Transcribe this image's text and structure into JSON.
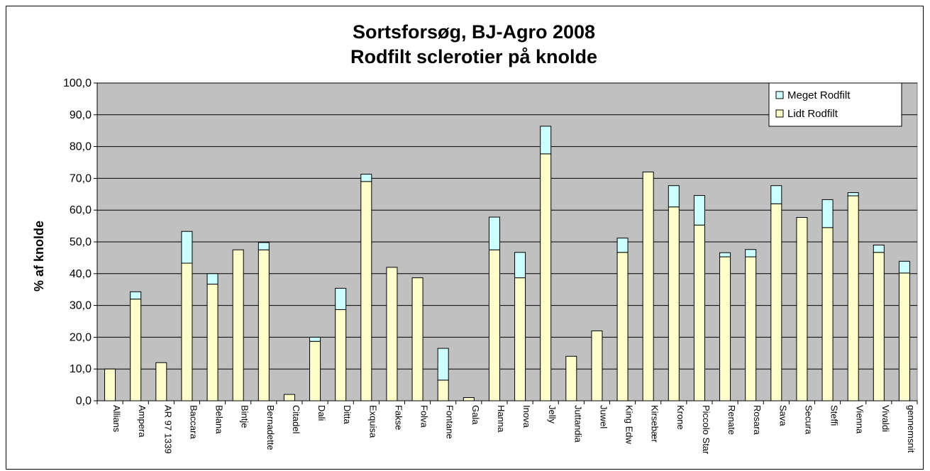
{
  "chart_data": {
    "type": "bar",
    "stacked": true,
    "title": "Sortsforsøg, BJ-Agro 2008",
    "subtitle": "Rodfilt sclerotier på knolde",
    "ylabel": "% af knolde",
    "xlabel": "",
    "ylim": [
      0,
      100
    ],
    "ytick_step": 10,
    "ytick_labels": [
      "0,0",
      "10,0",
      "20,0",
      "30,0",
      "40,0",
      "50,0",
      "60,0",
      "70,0",
      "80,0",
      "90,0",
      "100,0"
    ],
    "grid": true,
    "legend_position": "top-right",
    "categories": [
      "Allians",
      "Ampera",
      "AR 97 1339",
      "Baccara",
      "Belana",
      "Bintje",
      "Bernadette",
      "Citadel",
      "Dali",
      "Ditta",
      "Exquisa",
      "Fakse",
      "Folva",
      "Fontane",
      "Gala",
      "Hanna",
      "Inova",
      "Jelly",
      "Juttandia",
      "Juwel",
      "King Edw",
      "Kirsebær",
      "Krone",
      "Piccolo Star",
      "Renate",
      "Rosara",
      "Sava",
      "Secura",
      "Steffi",
      "Vienna",
      "Vivaldi",
      "gennemsnit"
    ],
    "series": [
      {
        "name": "Lidt Rodfilt",
        "color": "#ffffcc",
        "values": [
          10.0,
          32.0,
          12.0,
          43.3,
          36.7,
          47.5,
          47.5,
          2.0,
          18.7,
          28.7,
          69.0,
          42.0,
          38.7,
          6.5,
          1.0,
          47.5,
          38.7,
          77.7,
          14.0,
          22.0,
          46.7,
          72.0,
          61.0,
          55.3,
          45.3,
          45.3,
          62.0,
          57.7,
          54.5,
          64.5,
          46.7,
          40.2
        ]
      },
      {
        "name": "Meget Rodfilt",
        "color": "#ccffff",
        "values": [
          0.0,
          2.3,
          0.0,
          10.0,
          3.3,
          0.0,
          2.3,
          0.0,
          1.3,
          6.7,
          2.3,
          0.0,
          0.0,
          10.0,
          0.0,
          10.3,
          8.0,
          8.7,
          0.0,
          0.0,
          4.5,
          0.0,
          6.7,
          9.3,
          1.3,
          2.3,
          5.7,
          0.0,
          8.8,
          1.0,
          2.3,
          3.7
        ]
      }
    ],
    "legend_order": [
      "Meget Rodfilt",
      "Lidt Rodfilt"
    ],
    "plot_background": "#c0c0c0",
    "bar_edge_color": "#000000"
  }
}
